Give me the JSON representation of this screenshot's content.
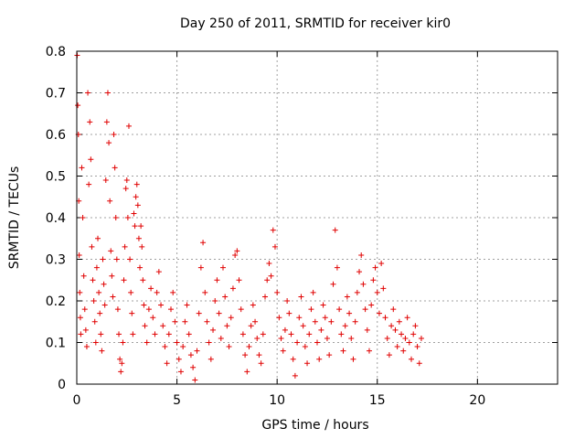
{
  "chart_data": {
    "type": "scatter",
    "title": "Day 250 of 2011, SRMTID for receiver kir0",
    "xlabel": "GPS time / hours",
    "ylabel": "SRMTID / TECUs",
    "xlim": [
      0,
      24
    ],
    "ylim": [
      0,
      0.8
    ],
    "x_ticks": [
      0,
      5,
      10,
      15,
      20
    ],
    "x_tick_labels": [
      "0",
      "5",
      "10",
      "15",
      "20"
    ],
    "y_ticks": [
      0,
      0.1,
      0.2,
      0.3,
      0.4,
      0.5,
      0.6,
      0.7,
      0.8
    ],
    "y_tick_labels": [
      "0",
      "0.1",
      "0.2",
      "0.3",
      "0.4",
      "0.5",
      "0.6",
      "0.7",
      "0.8"
    ],
    "grid": true,
    "marker": "+",
    "color": "#e00000",
    "series": [
      {
        "name": "SRMTID",
        "points": [
          [
            0.02,
            0.79
          ],
          [
            0.05,
            0.67
          ],
          [
            0.08,
            0.6
          ],
          [
            0.1,
            0.44
          ],
          [
            0.12,
            0.31
          ],
          [
            0.15,
            0.22
          ],
          [
            0.18,
            0.16
          ],
          [
            0.2,
            0.12
          ],
          [
            0.25,
            0.52
          ],
          [
            0.3,
            0.4
          ],
          [
            0.35,
            0.26
          ],
          [
            0.4,
            0.18
          ],
          [
            0.45,
            0.13
          ],
          [
            0.5,
            0.09
          ],
          [
            0.55,
            0.7
          ],
          [
            0.6,
            0.48
          ],
          [
            0.65,
            0.63
          ],
          [
            0.7,
            0.54
          ],
          [
            0.75,
            0.33
          ],
          [
            0.8,
            0.25
          ],
          [
            0.85,
            0.2
          ],
          [
            0.9,
            0.15
          ],
          [
            0.95,
            0.1
          ],
          [
            1.0,
            0.28
          ],
          [
            1.05,
            0.35
          ],
          [
            1.1,
            0.22
          ],
          [
            1.15,
            0.17
          ],
          [
            1.2,
            0.12
          ],
          [
            1.25,
            0.08
          ],
          [
            1.3,
            0.3
          ],
          [
            1.35,
            0.24
          ],
          [
            1.4,
            0.19
          ],
          [
            1.45,
            0.49
          ],
          [
            1.5,
            0.63
          ],
          [
            1.55,
            0.7
          ],
          [
            1.6,
            0.58
          ],
          [
            1.65,
            0.44
          ],
          [
            1.7,
            0.32
          ],
          [
            1.75,
            0.26
          ],
          [
            1.8,
            0.21
          ],
          [
            1.85,
            0.6
          ],
          [
            1.9,
            0.52
          ],
          [
            1.95,
            0.4
          ],
          [
            2.0,
            0.3
          ],
          [
            2.05,
            0.18
          ],
          [
            2.1,
            0.12
          ],
          [
            2.15,
            0.06
          ],
          [
            2.2,
            0.03
          ],
          [
            2.25,
            0.05
          ],
          [
            2.3,
            0.1
          ],
          [
            2.35,
            0.25
          ],
          [
            2.4,
            0.33
          ],
          [
            2.45,
            0.47
          ],
          [
            2.5,
            0.49
          ],
          [
            2.55,
            0.4
          ],
          [
            2.6,
            0.62
          ],
          [
            2.65,
            0.3
          ],
          [
            2.7,
            0.22
          ],
          [
            2.75,
            0.17
          ],
          [
            2.8,
            0.12
          ],
          [
            2.85,
            0.41
          ],
          [
            2.9,
            0.38
          ],
          [
            2.95,
            0.45
          ],
          [
            3.0,
            0.48
          ],
          [
            3.05,
            0.43
          ],
          [
            3.1,
            0.35
          ],
          [
            3.15,
            0.28
          ],
          [
            3.2,
            0.38
          ],
          [
            3.25,
            0.33
          ],
          [
            3.3,
            0.25
          ],
          [
            3.35,
            0.19
          ],
          [
            3.4,
            0.14
          ],
          [
            3.5,
            0.1
          ],
          [
            3.6,
            0.18
          ],
          [
            3.7,
            0.23
          ],
          [
            3.8,
            0.16
          ],
          [
            3.9,
            0.12
          ],
          [
            4.0,
            0.22
          ],
          [
            4.1,
            0.27
          ],
          [
            4.2,
            0.19
          ],
          [
            4.3,
            0.14
          ],
          [
            4.4,
            0.09
          ],
          [
            4.5,
            0.05
          ],
          [
            4.6,
            0.12
          ],
          [
            4.7,
            0.18
          ],
          [
            4.8,
            0.22
          ],
          [
            4.9,
            0.15
          ],
          [
            5.0,
            0.1
          ],
          [
            5.1,
            0.06
          ],
          [
            5.2,
            0.03
          ],
          [
            5.3,
            0.09
          ],
          [
            5.4,
            0.15
          ],
          [
            5.5,
            0.19
          ],
          [
            5.6,
            0.12
          ],
          [
            5.7,
            0.07
          ],
          [
            5.8,
            0.04
          ],
          [
            5.9,
            0.01
          ],
          [
            6.0,
            0.08
          ],
          [
            6.1,
            0.17
          ],
          [
            6.2,
            0.28
          ],
          [
            6.3,
            0.34
          ],
          [
            6.4,
            0.22
          ],
          [
            6.5,
            0.15
          ],
          [
            6.6,
            0.1
          ],
          [
            6.7,
            0.06
          ],
          [
            6.8,
            0.13
          ],
          [
            6.9,
            0.2
          ],
          [
            7.0,
            0.25
          ],
          [
            7.1,
            0.17
          ],
          [
            7.2,
            0.11
          ],
          [
            7.3,
            0.28
          ],
          [
            7.4,
            0.21
          ],
          [
            7.5,
            0.14
          ],
          [
            7.6,
            0.09
          ],
          [
            7.7,
            0.16
          ],
          [
            7.8,
            0.23
          ],
          [
            7.9,
            0.31
          ],
          [
            8.0,
            0.32
          ],
          [
            8.1,
            0.25
          ],
          [
            8.2,
            0.18
          ],
          [
            8.3,
            0.12
          ],
          [
            8.4,
            0.07
          ],
          [
            8.5,
            0.03
          ],
          [
            8.6,
            0.09
          ],
          [
            8.7,
            0.14
          ],
          [
            8.8,
            0.19
          ],
          [
            8.9,
            0.15
          ],
          [
            9.0,
            0.11
          ],
          [
            9.1,
            0.07
          ],
          [
            9.2,
            0.05
          ],
          [
            9.3,
            0.12
          ],
          [
            9.4,
            0.21
          ],
          [
            9.5,
            0.25
          ],
          [
            9.6,
            0.29
          ],
          [
            9.7,
            0.26
          ],
          [
            9.8,
            0.37
          ],
          [
            9.9,
            0.33
          ],
          [
            10.0,
            0.22
          ],
          [
            10.1,
            0.16
          ],
          [
            10.2,
            0.11
          ],
          [
            10.3,
            0.08
          ],
          [
            10.4,
            0.13
          ],
          [
            10.5,
            0.2
          ],
          [
            10.6,
            0.17
          ],
          [
            10.7,
            0.12
          ],
          [
            10.8,
            0.06
          ],
          [
            10.9,
            0.02
          ],
          [
            11.0,
            0.1
          ],
          [
            11.1,
            0.16
          ],
          [
            11.2,
            0.21
          ],
          [
            11.3,
            0.14
          ],
          [
            11.4,
            0.09
          ],
          [
            11.5,
            0.05
          ],
          [
            11.6,
            0.12
          ],
          [
            11.7,
            0.18
          ],
          [
            11.8,
            0.22
          ],
          [
            11.9,
            0.15
          ],
          [
            12.0,
            0.1
          ],
          [
            12.1,
            0.06
          ],
          [
            12.2,
            0.13
          ],
          [
            12.3,
            0.19
          ],
          [
            12.4,
            0.16
          ],
          [
            12.5,
            0.11
          ],
          [
            12.6,
            0.07
          ],
          [
            12.7,
            0.15
          ],
          [
            12.8,
            0.24
          ],
          [
            12.9,
            0.37
          ],
          [
            13.0,
            0.28
          ],
          [
            13.1,
            0.18
          ],
          [
            13.2,
            0.12
          ],
          [
            13.3,
            0.08
          ],
          [
            13.4,
            0.14
          ],
          [
            13.5,
            0.21
          ],
          [
            13.6,
            0.17
          ],
          [
            13.7,
            0.11
          ],
          [
            13.8,
            0.06
          ],
          [
            13.9,
            0.15
          ],
          [
            14.0,
            0.22
          ],
          [
            14.1,
            0.27
          ],
          [
            14.2,
            0.31
          ],
          [
            14.3,
            0.24
          ],
          [
            14.4,
            0.18
          ],
          [
            14.5,
            0.13
          ],
          [
            14.6,
            0.08
          ],
          [
            14.7,
            0.19
          ],
          [
            14.8,
            0.25
          ],
          [
            14.9,
            0.28
          ],
          [
            15.0,
            0.22
          ],
          [
            15.1,
            0.17
          ],
          [
            15.2,
            0.29
          ],
          [
            15.3,
            0.23
          ],
          [
            15.4,
            0.16
          ],
          [
            15.5,
            0.11
          ],
          [
            15.6,
            0.07
          ],
          [
            15.7,
            0.14
          ],
          [
            15.8,
            0.18
          ],
          [
            15.9,
            0.13
          ],
          [
            16.0,
            0.09
          ],
          [
            16.1,
            0.15
          ],
          [
            16.2,
            0.12
          ],
          [
            16.3,
            0.08
          ],
          [
            16.4,
            0.11
          ],
          [
            16.5,
            0.16
          ],
          [
            16.6,
            0.1
          ],
          [
            16.7,
            0.06
          ],
          [
            16.8,
            0.12
          ],
          [
            16.9,
            0.14
          ],
          [
            17.0,
            0.09
          ],
          [
            17.1,
            0.05
          ],
          [
            17.2,
            0.11
          ]
        ]
      }
    ]
  }
}
